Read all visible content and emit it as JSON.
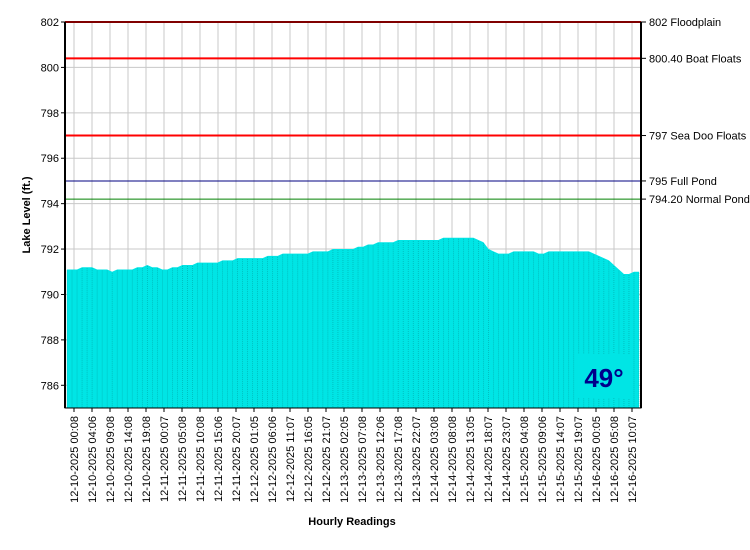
{
  "chart_data": {
    "type": "area",
    "title": "",
    "xlabel": "Hourly Readings",
    "ylabel": "Lake Level (ft.)",
    "ylim": [
      785,
      802
    ],
    "yticks": [
      786,
      788,
      790,
      792,
      794,
      796,
      798,
      800,
      802
    ],
    "grid": true,
    "fill_color": "#00e5e5",
    "x_tick_labels": [
      "12-10-2025 00:08",
      "12-10-2025 04:06",
      "12-10-2025 09:08",
      "12-10-2025 14:08",
      "12-10-2025 19:08",
      "12-11-2025 00:07",
      "12-11-2025 05:08",
      "12-11-2025 10:08",
      "12-11-2025 15:06",
      "12-11-2025 20:07",
      "12-12-2025 01:05",
      "12-12-2025 06:06",
      "12-12-2025 11:07",
      "12-12-2025 16:05",
      "12-12-2025 21:07",
      "12-13-2025 02:05",
      "12-13-2025 07:08",
      "12-13-2025 12:06",
      "12-13-2025 17:08",
      "12-13-2025 22:07",
      "12-14-2025 03:08",
      "12-14-2025 08:08",
      "12-14-2025 13:05",
      "12-14-2025 18:07",
      "12-14-2025 23:07",
      "12-15-2025 04:08",
      "12-15-2025 09:06",
      "12-15-2025 14:07",
      "12-15-2025 19:07",
      "12-16-2025 00:05",
      "12-16-2025 05:08",
      "12-16-2025 10:07"
    ],
    "series": [
      {
        "values": [
          791.1,
          791.1,
          791.1,
          791.2,
          791.2,
          791.2,
          791.1,
          791.1,
          791.1,
          791.0,
          791.1,
          791.1,
          791.1,
          791.1,
          791.2,
          791.2,
          791.3,
          791.2,
          791.2,
          791.1,
          791.1,
          791.2,
          791.2,
          791.3,
          791.3,
          791.3,
          791.4,
          791.4,
          791.4,
          791.4,
          791.4,
          791.5,
          791.5,
          791.5,
          791.6,
          791.6,
          791.6,
          791.6,
          791.6,
          791.6,
          791.7,
          791.7,
          791.7,
          791.8,
          791.8,
          791.8,
          791.8,
          791.8,
          791.8,
          791.9,
          791.9,
          791.9,
          791.9,
          792.0,
          792.0,
          792.0,
          792.0,
          792.0,
          792.1,
          792.1,
          792.2,
          792.2,
          792.3,
          792.3,
          792.3,
          792.3,
          792.4,
          792.4,
          792.4,
          792.4,
          792.4,
          792.4,
          792.4,
          792.4,
          792.4,
          792.5,
          792.5,
          792.5,
          792.5,
          792.5,
          792.5,
          792.5,
          792.4,
          792.3,
          792.0,
          791.9,
          791.8,
          791.8,
          791.8,
          791.9,
          791.9,
          791.9,
          791.9,
          791.9,
          791.8,
          791.8,
          791.9,
          791.9,
          791.9,
          791.9,
          791.9,
          791.9,
          791.9,
          791.9,
          791.9,
          791.8,
          791.7,
          791.6,
          791.5,
          791.3,
          791.1,
          790.9,
          790.9,
          791.0,
          791.0
        ]
      }
    ],
    "reference_lines": [
      {
        "value": 802,
        "label": "802 Floodplain",
        "color": "#ff0000"
      },
      {
        "value": 800.4,
        "label": "800.40 Boat Floats",
        "color": "#ff0000"
      },
      {
        "value": 797,
        "label": "797 Sea Doo Floats",
        "color": "#ff0000"
      },
      {
        "value": 795,
        "label": "795 Full Pond",
        "color": "#000080"
      },
      {
        "value": 794.2,
        "label": "794.20 Normal Pond",
        "color": "#008000"
      }
    ],
    "badge": {
      "text": "49°",
      "background": "#00e5e5",
      "color": "#00008b"
    }
  }
}
